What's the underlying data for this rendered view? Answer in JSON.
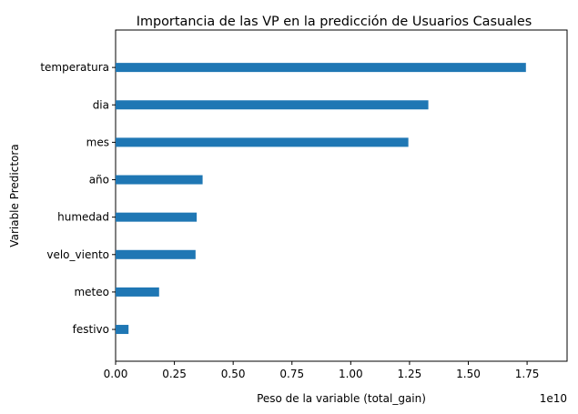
{
  "chart_data": {
    "type": "bar",
    "orientation": "horizontal",
    "title": "Importancia de las VP en la predicción de Usuarios Casuales",
    "xlabel": "Peso de la variable (total_gain)",
    "ylabel": "Variable Predictora",
    "x_offset_label": "1e10",
    "x_scale_factor": 10000000000,
    "xlim": [
      0,
      1.92
    ],
    "x_ticks": [
      0.0,
      0.25,
      0.5,
      0.75,
      1.0,
      1.25,
      1.5,
      1.75
    ],
    "x_tick_labels": [
      "0.00",
      "0.25",
      "0.50",
      "0.75",
      "1.00",
      "1.25",
      "1.50",
      "1.75"
    ],
    "categories": [
      "temperatura",
      "dia",
      "mes",
      "año",
      "humedad",
      "velo_viento",
      "meteo",
      "festivo"
    ],
    "values": [
      1.745,
      1.33,
      1.245,
      0.37,
      0.345,
      0.34,
      0.185,
      0.055
    ],
    "bar_color": "#1f77b4",
    "grid": false,
    "legend": "none"
  }
}
